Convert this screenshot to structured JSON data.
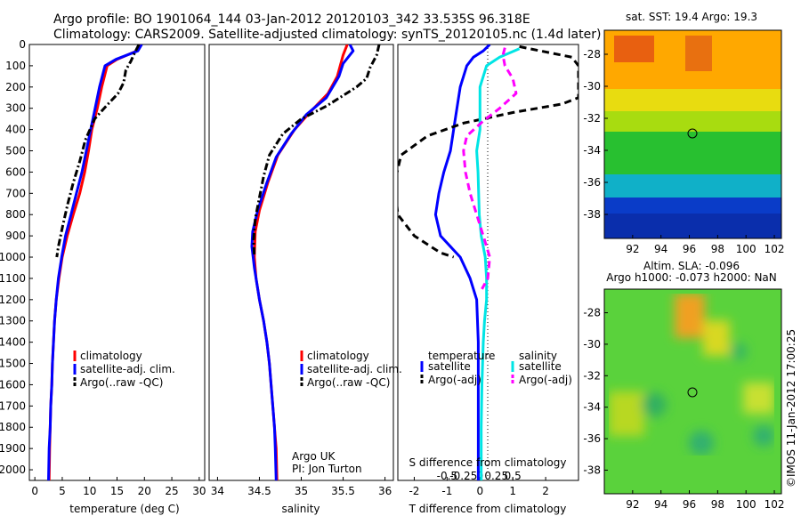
{
  "header": {
    "line1": "Argo profile: BO 1901064_144 03-Jan-2012 20120103_342 33.535S 96.318E",
    "line2": "Climatology: CARS2009. Satellite-adjusted climatology: synTS_20120105.nc (1.4d later)"
  },
  "colors": {
    "climatology": "#ff0000",
    "satellite": "#0000ff",
    "argo": "#000000",
    "salinity_satellite": "#00e5e5",
    "salinity_argo": "#ff00ff"
  },
  "depth_ticks": [
    0,
    100,
    200,
    300,
    400,
    500,
    600,
    700,
    800,
    900,
    1000,
    1100,
    1200,
    1300,
    1400,
    1500,
    1600,
    1700,
    1800,
    1900,
    2000
  ],
  "chart_data": [
    {
      "type": "line",
      "panel": "temperature",
      "xlabel": "temperature (deg C)",
      "ylabel": "",
      "xlim": [
        -1,
        31
      ],
      "ylim": [
        2050,
        0
      ],
      "xticks": [
        0,
        5,
        10,
        15,
        20,
        25,
        30
      ],
      "y_axis": "depth",
      "series": [
        {
          "name": "climatology",
          "color": "#ff0000",
          "style": "solid",
          "points": [
            [
              19.2,
              0
            ],
            [
              18.6,
              30
            ],
            [
              15,
              70
            ],
            [
              13.2,
              100
            ],
            [
              12.2,
              200
            ],
            [
              11.4,
              300
            ],
            [
              10.4,
              400
            ],
            [
              9.8,
              500
            ],
            [
              9.1,
              600
            ],
            [
              8.2,
              700
            ],
            [
              7.0,
              800
            ],
            [
              5.9,
              900
            ],
            [
              5.0,
              1000
            ],
            [
              4.4,
              1100
            ],
            [
              3.9,
              1200
            ],
            [
              3.6,
              1300
            ],
            [
              3.4,
              1400
            ],
            [
              3.2,
              1500
            ],
            [
              3.1,
              1600
            ],
            [
              2.9,
              1700
            ],
            [
              2.8,
              1800
            ],
            [
              2.7,
              1900
            ],
            [
              2.6,
              2050
            ]
          ]
        },
        {
          "name": "satellite-adj. clim.",
          "color": "#0000ff",
          "style": "solid",
          "points": [
            [
              19.5,
              0
            ],
            [
              18.8,
              30
            ],
            [
              14.8,
              70
            ],
            [
              12.8,
              100
            ],
            [
              11.8,
              200
            ],
            [
              11.0,
              300
            ],
            [
              10.2,
              400
            ],
            [
              9.4,
              500
            ],
            [
              8.6,
              600
            ],
            [
              7.6,
              700
            ],
            [
              6.6,
              800
            ],
            [
              5.6,
              900
            ],
            [
              4.9,
              1000
            ],
            [
              4.3,
              1100
            ],
            [
              3.9,
              1200
            ],
            [
              3.6,
              1300
            ],
            [
              3.4,
              1400
            ],
            [
              3.2,
              1500
            ],
            [
              3.1,
              1600
            ],
            [
              2.9,
              1700
            ],
            [
              2.8,
              1800
            ],
            [
              2.6,
              1900
            ],
            [
              2.5,
              2050
            ]
          ]
        },
        {
          "name": "Argo(..raw -QC)",
          "color": "#000000",
          "style": "dashdot",
          "points": [
            [
              19.0,
              0
            ],
            [
              18.2,
              40
            ],
            [
              17.5,
              80
            ],
            [
              16.6,
              120
            ],
            [
              16.2,
              180
            ],
            [
              15.2,
              230
            ],
            [
              13.0,
              290
            ],
            [
              10.9,
              350
            ],
            [
              9.2,
              450
            ],
            [
              8.2,
              550
            ],
            [
              7.0,
              650
            ],
            [
              6.0,
              750
            ],
            [
              5.1,
              850
            ],
            [
              4.3,
              950
            ],
            [
              4.0,
              1000
            ]
          ]
        }
      ]
    },
    {
      "type": "line",
      "panel": "salinity",
      "xlabel": "salinity",
      "ylabel": "",
      "xlim": [
        33.9,
        36.1
      ],
      "ylim": [
        2050,
        0
      ],
      "xticks": [
        34,
        34.5,
        35,
        35.5,
        36
      ],
      "y_axis": "depth",
      "series": [
        {
          "name": "climatology",
          "color": "#ff0000",
          "style": "solid",
          "points": [
            [
              35.55,
              0
            ],
            [
              35.5,
              50
            ],
            [
              35.43,
              150
            ],
            [
              35.32,
              230
            ],
            [
              35.1,
              320
            ],
            [
              34.92,
              400
            ],
            [
              34.72,
              520
            ],
            [
              34.6,
              650
            ],
            [
              34.5,
              780
            ],
            [
              34.45,
              880
            ],
            [
              34.44,
              1000
            ],
            [
              34.46,
              1100
            ],
            [
              34.5,
              1200
            ],
            [
              34.55,
              1300
            ],
            [
              34.59,
              1400
            ],
            [
              34.62,
              1500
            ],
            [
              34.64,
              1600
            ],
            [
              34.66,
              1700
            ],
            [
              34.68,
              1800
            ],
            [
              34.7,
              1900
            ],
            [
              34.71,
              2050
            ]
          ]
        },
        {
          "name": "satellite-adj. clim.",
          "color": "#0000ff",
          "style": "solid",
          "points": [
            [
              35.58,
              0
            ],
            [
              35.62,
              30
            ],
            [
              35.5,
              90
            ],
            [
              35.45,
              150
            ],
            [
              35.3,
              250
            ],
            [
              35.06,
              330
            ],
            [
              34.88,
              420
            ],
            [
              34.7,
              530
            ],
            [
              34.58,
              660
            ],
            [
              34.48,
              780
            ],
            [
              34.42,
              880
            ],
            [
              34.41,
              950
            ],
            [
              34.44,
              1050
            ],
            [
              34.5,
              1200
            ],
            [
              34.55,
              1300
            ],
            [
              34.59,
              1400
            ],
            [
              34.62,
              1500
            ],
            [
              34.64,
              1600
            ],
            [
              34.66,
              1700
            ],
            [
              34.68,
              1800
            ],
            [
              34.69,
              1900
            ],
            [
              34.7,
              2050
            ]
          ]
        },
        {
          "name": "Argo(..raw -QC)",
          "color": "#000000",
          "style": "dashdot",
          "points": [
            [
              35.93,
              0
            ],
            [
              35.9,
              50
            ],
            [
              35.82,
              110
            ],
            [
              35.78,
              160
            ],
            [
              35.66,
              200
            ],
            [
              35.5,
              240
            ],
            [
              35.3,
              290
            ],
            [
              35.0,
              350
            ],
            [
              34.78,
              420
            ],
            [
              34.62,
              520
            ],
            [
              34.55,
              620
            ],
            [
              34.5,
              720
            ],
            [
              34.45,
              820
            ],
            [
              34.43,
              920
            ],
            [
              34.44,
              1000
            ]
          ]
        }
      ]
    },
    {
      "type": "line",
      "panel": "difference",
      "xlabel": "T difference from climatology",
      "xlabel_top": "S difference from climatology",
      "ylabel": "",
      "xlim": [
        -2.5,
        3
      ],
      "ylim": [
        2050,
        0
      ],
      "xticks": [
        -2,
        -1,
        0,
        1,
        2
      ],
      "sticks": [
        -0.5,
        -0.25,
        0,
        0.25,
        0.5
      ],
      "y_axis": "depth",
      "legend_titles": [
        "temperature",
        "salinity"
      ],
      "series": [
        {
          "name": "satellite",
          "group": "temperature",
          "color": "#0000ff",
          "style": "solid",
          "points": [
            [
              0.3,
              0
            ],
            [
              0.1,
              30
            ],
            [
              -0.2,
              60
            ],
            [
              -0.4,
              100
            ],
            [
              -0.6,
              200
            ],
            [
              -0.7,
              300
            ],
            [
              -0.8,
              400
            ],
            [
              -0.9,
              500
            ],
            [
              -1.1,
              600
            ],
            [
              -1.25,
              700
            ],
            [
              -1.35,
              800
            ],
            [
              -1.2,
              900
            ],
            [
              -0.6,
              1000
            ],
            [
              -0.3,
              1100
            ],
            [
              -0.1,
              1200
            ],
            [
              -0.05,
              1400
            ],
            [
              -0.05,
              1600
            ],
            [
              -0.05,
              1800
            ],
            [
              -0.05,
              2050
            ]
          ]
        },
        {
          "name": "Argo(-adj)",
          "group": "temperature",
          "color": "#000000",
          "style": "dashed",
          "points": [
            [
              1.2,
              10
            ],
            [
              2.8,
              60
            ],
            [
              3.0,
              100
            ],
            [
              3.0,
              150
            ],
            [
              3.0,
              250
            ],
            [
              2.5,
              280
            ],
            [
              1.0,
              320
            ],
            [
              -0.5,
              370
            ],
            [
              -1.6,
              430
            ],
            [
              -2.4,
              520
            ],
            [
              -2.6,
              650
            ],
            [
              -2.5,
              800
            ],
            [
              -2.0,
              900
            ],
            [
              -1.2,
              980
            ],
            [
              -0.8,
              1000
            ]
          ]
        },
        {
          "name": "satellite",
          "group": "salinity",
          "color": "#00e5e5",
          "style": "solid",
          "points": [
            [
              0.6,
              20
            ],
            [
              0.3,
              60
            ],
            [
              0.1,
              100
            ],
            [
              0.0,
              200
            ],
            [
              0.0,
              300
            ],
            [
              0.0,
              400
            ],
            [
              -0.05,
              500
            ],
            [
              -0.03,
              600
            ],
            [
              -0.02,
              700
            ],
            [
              -0.01,
              800
            ],
            [
              0.02,
              900
            ],
            [
              0.08,
              1000
            ],
            [
              0.1,
              1100
            ],
            [
              0.1,
              1200
            ],
            [
              0.07,
              1300
            ],
            [
              0.05,
              1400
            ],
            [
              0.03,
              1600
            ],
            [
              0.02,
              1800
            ],
            [
              0.02,
              2050
            ]
          ]
        },
        {
          "name": "Argo(-adj)",
          "group": "salinity",
          "color": "#ff00ff",
          "style": "dashed",
          "points": [
            [
              0.38,
              15
            ],
            [
              0.35,
              50
            ],
            [
              0.38,
              100
            ],
            [
              0.5,
              160
            ],
            [
              0.55,
              230
            ],
            [
              0.3,
              300
            ],
            [
              0.05,
              360
            ],
            [
              -0.2,
              430
            ],
            [
              -0.25,
              500
            ],
            [
              -0.22,
              600
            ],
            [
              -0.15,
              700
            ],
            [
              -0.05,
              800
            ],
            [
              0.05,
              900
            ],
            [
              0.15,
              1000
            ],
            [
              0.12,
              1100
            ],
            [
              0.03,
              1150
            ]
          ]
        }
      ]
    }
  ],
  "legend": {
    "temperature": [
      "climatology",
      "satellite-adj. clim.",
      "Argo(..raw -QC)"
    ],
    "salinity": [
      "climatology",
      "satellite-adj. clim.",
      "Argo(..raw -QC)"
    ]
  },
  "credit": {
    "line1": "Argo UK",
    "line2": "PI: Jon Turton"
  },
  "maps": {
    "sst_title": "sat. SST: 19.4  Argo: 19.3",
    "sla_line1": "Altim. SLA: -0.096",
    "sla_line2": "Argo h1000: -0.073  h2000: NaN",
    "lat_ticks": [
      -28,
      -30,
      -32,
      -34,
      -36,
      -38
    ],
    "lon_ticks": [
      92,
      94,
      96,
      98,
      100,
      102
    ],
    "marker": {
      "lon": 96.318,
      "lat": -33.535
    }
  },
  "footer": "©IMOS 11-Jan-2012 17:00:25"
}
